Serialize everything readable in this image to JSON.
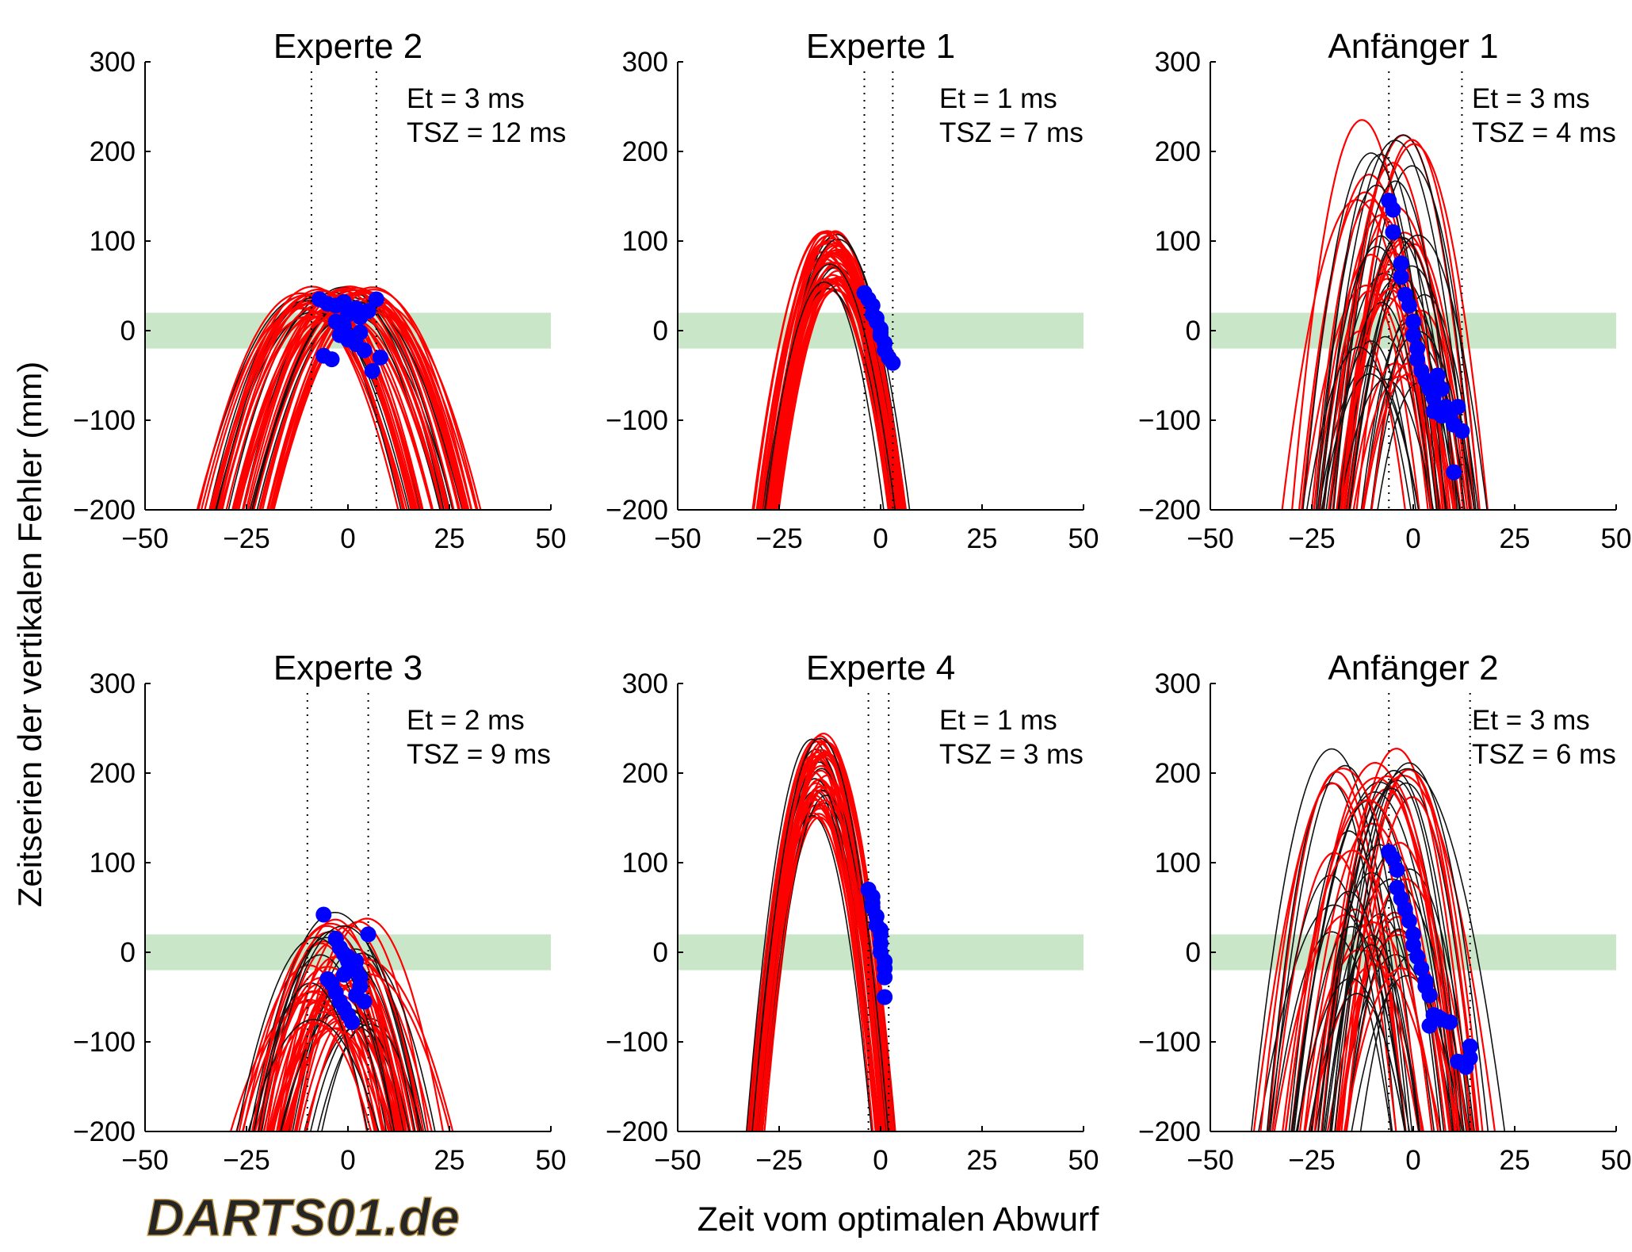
{
  "figure": {
    "ylabel": "Zeitserien der vertikalen Fehler (mm)",
    "xlabel": "Zeit vom optimalen Abwurf",
    "logo_text": "DARTS01.de"
  },
  "colors": {
    "expert_curves": "#ff0000",
    "other_curves": "#111111",
    "release_points": "#0000ff",
    "target_band": "#c9e6c9"
  },
  "chart_data": [
    {
      "type": "line",
      "title": "Experte 2",
      "annotation_lines": [
        "Et = 3 ms",
        "TSZ = 12 ms"
      ],
      "xlim": [
        -50,
        50
      ],
      "ylim": [
        -200,
        300
      ],
      "xticks": [
        -50,
        -25,
        0,
        25,
        50
      ],
      "yticks": [
        -200,
        -100,
        0,
        100,
        200,
        300
      ],
      "target_band": [
        -20,
        20
      ],
      "window_lines": [
        -9,
        7
      ],
      "curves": {
        "count": 60,
        "apex_t": [
          -12,
          8
        ],
        "apex_y": [
          15,
          50
        ],
        "curvature": [
          0.34,
          0.42
        ],
        "black_share": 0.18
      },
      "release_points": [
        [
          -7,
          35
        ],
        [
          -5,
          30
        ],
        [
          -3,
          28
        ],
        [
          -1,
          32
        ],
        [
          1,
          20
        ],
        [
          3,
          15
        ],
        [
          5,
          22
        ],
        [
          7,
          35
        ],
        [
          -6,
          -28
        ],
        [
          -4,
          -32
        ],
        [
          -2,
          -5
        ],
        [
          0,
          -10
        ],
        [
          2,
          -15
        ],
        [
          4,
          -22
        ],
        [
          -1,
          5
        ],
        [
          1,
          -8
        ],
        [
          3,
          -2
        ],
        [
          6,
          -45
        ],
        [
          8,
          -30
        ],
        [
          -3,
          10
        ],
        [
          0,
          18
        ],
        [
          2,
          25
        ]
      ]
    },
    {
      "type": "line",
      "title": "Experte 1",
      "annotation_lines": [
        "Et = 1 ms",
        "TSZ = 7 ms"
      ],
      "xlim": [
        -50,
        50
      ],
      "ylim": [
        -200,
        300
      ],
      "xticks": [
        -50,
        -25,
        0,
        25,
        50
      ],
      "yticks": [
        -200,
        -100,
        0,
        100,
        200,
        300
      ],
      "target_band": [
        -20,
        20
      ],
      "window_lines": [
        -4,
        3
      ],
      "curves": {
        "count": 55,
        "apex_t": [
          -14,
          -10
        ],
        "apex_y": [
          45,
          112
        ],
        "curvature": [
          0.95,
          1.2
        ],
        "black_share": 0.15
      },
      "release_points": [
        [
          -4,
          42
        ],
        [
          -3,
          35
        ],
        [
          -2,
          28
        ],
        [
          -2,
          18
        ],
        [
          -1,
          10
        ],
        [
          0,
          2
        ],
        [
          0,
          -6
        ],
        [
          1,
          -14
        ],
        [
          1,
          -22
        ],
        [
          2,
          -30
        ],
        [
          3,
          -36
        ],
        [
          -1,
          14
        ],
        [
          0,
          -2
        ]
      ]
    },
    {
      "type": "line",
      "title": "Anfänger 1",
      "annotation_lines": [
        "Et = 3 ms",
        "TSZ = 4 ms"
      ],
      "xlim": [
        -50,
        50
      ],
      "ylim": [
        -200,
        300
      ],
      "xticks": [
        -50,
        -25,
        0,
        25,
        50
      ],
      "yticks": [
        -200,
        -100,
        0,
        100,
        200,
        300
      ],
      "target_band": [
        -20,
        20
      ],
      "window_lines": [
        -6,
        12
      ],
      "curves": {
        "count": 60,
        "apex_t": [
          -14,
          3
        ],
        "apex_y": [
          -70,
          240
        ],
        "curvature": [
          1.0,
          1.6
        ],
        "black_share": 0.45
      },
      "release_points": [
        [
          -6,
          145
        ],
        [
          -5,
          135
        ],
        [
          -5,
          110
        ],
        [
          -3,
          75
        ],
        [
          -3,
          60
        ],
        [
          -2,
          40
        ],
        [
          -1,
          28
        ],
        [
          0,
          10
        ],
        [
          0,
          -5
        ],
        [
          1,
          -20
        ],
        [
          1,
          -32
        ],
        [
          2,
          -45
        ],
        [
          3,
          -55
        ],
        [
          4,
          -65
        ],
        [
          5,
          -75
        ],
        [
          6,
          -50
        ],
        [
          7,
          -65
        ],
        [
          8,
          -85
        ],
        [
          9,
          -95
        ],
        [
          10,
          -105
        ],
        [
          11,
          -85
        ],
        [
          12,
          -112
        ],
        [
          10,
          -158
        ],
        [
          7,
          -95
        ],
        [
          5,
          -90
        ]
      ]
    },
    {
      "type": "line",
      "title": "Experte 3",
      "annotation_lines": [
        "Et = 2 ms",
        "TSZ = 9 ms"
      ],
      "xlim": [
        -50,
        50
      ],
      "ylim": [
        -200,
        300
      ],
      "xticks": [
        -50,
        -25,
        0,
        25,
        50
      ],
      "yticks": [
        -200,
        -100,
        0,
        100,
        200,
        300
      ],
      "target_band": [
        -20,
        20
      ],
      "window_lines": [
        -10,
        5
      ],
      "curves": {
        "count": 60,
        "apex_t": [
          -10,
          6
        ],
        "apex_y": [
          -85,
          45
        ],
        "curvature": [
          0.4,
          0.9
        ],
        "black_share": 0.3
      },
      "release_points": [
        [
          -6,
          42
        ],
        [
          5,
          20
        ],
        [
          -3,
          15
        ],
        [
          -2,
          5
        ],
        [
          -1,
          -2
        ],
        [
          0,
          -10
        ],
        [
          1,
          -15
        ],
        [
          2,
          -20
        ],
        [
          3,
          -28
        ],
        [
          -4,
          -35
        ],
        [
          -3,
          -45
        ],
        [
          -2,
          -55
        ],
        [
          -1,
          -62
        ],
        [
          0,
          -70
        ],
        [
          1,
          -78
        ],
        [
          2,
          -48
        ],
        [
          3,
          -38
        ],
        [
          -1,
          -25
        ],
        [
          0,
          -5
        ],
        [
          2,
          -10
        ],
        [
          -5,
          -30
        ],
        [
          4,
          -55
        ]
      ]
    },
    {
      "type": "line",
      "title": "Experte 4",
      "annotation_lines": [
        "Et = 1 ms",
        "TSZ = 3 ms"
      ],
      "xlim": [
        -50,
        50
      ],
      "ylim": [
        -200,
        300
      ],
      "xticks": [
        -50,
        -25,
        0,
        25,
        50
      ],
      "yticks": [
        -200,
        -100,
        0,
        100,
        200,
        300
      ],
      "target_band": [
        -20,
        20
      ],
      "window_lines": [
        -3,
        2
      ],
      "curves": {
        "count": 55,
        "apex_t": [
          -17,
          -13
        ],
        "apex_y": [
          150,
          245
        ],
        "curvature": [
          1.45,
          1.7
        ],
        "black_share": 0.18
      },
      "release_points": [
        [
          -3,
          70
        ],
        [
          -2,
          62
        ],
        [
          -2,
          50
        ],
        [
          -1,
          40
        ],
        [
          -1,
          30
        ],
        [
          0,
          20
        ],
        [
          0,
          10
        ],
        [
          0,
          0
        ],
        [
          1,
          -10
        ],
        [
          1,
          -18
        ],
        [
          1,
          -28
        ],
        [
          1,
          -50
        ],
        [
          -2,
          55
        ],
        [
          0,
          25
        ]
      ]
    },
    {
      "type": "line",
      "title": "Anfänger 2",
      "annotation_lines": [
        "Et = 3 ms",
        "TSZ = 6 ms"
      ],
      "xlim": [
        -50,
        50
      ],
      "ylim": [
        -200,
        300
      ],
      "xticks": [
        -50,
        -25,
        0,
        25,
        50
      ],
      "yticks": [
        -200,
        -100,
        0,
        100,
        200,
        300
      ],
      "target_band": [
        -20,
        20
      ],
      "window_lines": [
        -6,
        14
      ],
      "curves": {
        "count": 60,
        "apex_t": [
          -22,
          0
        ],
        "apex_y": [
          -55,
          235
        ],
        "curvature": [
          0.7,
          1.6
        ],
        "black_share": 0.5
      },
      "release_points": [
        [
          -6,
          112
        ],
        [
          -5,
          105
        ],
        [
          -4,
          92
        ],
        [
          -4,
          72
        ],
        [
          -3,
          60
        ],
        [
          -2,
          48
        ],
        [
          -1,
          35
        ],
        [
          0,
          20
        ],
        [
          0,
          8
        ],
        [
          1,
          -5
        ],
        [
          2,
          -18
        ],
        [
          3,
          -32
        ],
        [
          4,
          -48
        ],
        [
          4,
          -82
        ],
        [
          5,
          -70
        ],
        [
          6,
          -72
        ],
        [
          7,
          -75
        ],
        [
          9,
          -78
        ],
        [
          11,
          -122
        ],
        [
          13,
          -128
        ],
        [
          14,
          -105
        ],
        [
          14,
          -118
        ],
        [
          3,
          -38
        ]
      ]
    }
  ]
}
